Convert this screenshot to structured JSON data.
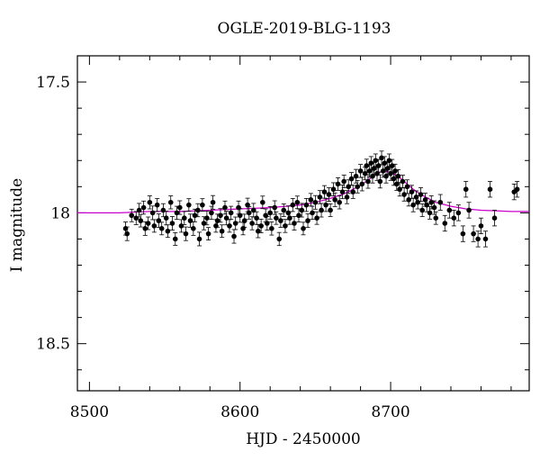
{
  "chart_data": {
    "type": "scatter",
    "title": "OGLE-2019-BLG-1193",
    "xlabel": "HJD - 2450000",
    "ylabel": "I magnitude",
    "xlim": [
      8492,
      8792
    ],
    "ylim": [
      18.68,
      17.4
    ],
    "y_inverted": true,
    "x_ticks": [
      8500,
      8600,
      8700
    ],
    "x_tick_labels": [
      "8500",
      "8600",
      "8700"
    ],
    "y_ticks": [
      17.5,
      18,
      18.5
    ],
    "y_tick_labels": [
      "17.5",
      "18",
      "18.5"
    ],
    "grid": false,
    "colors": {
      "points": "#000000",
      "model": "#cc00cc"
    },
    "series": [
      {
        "type": "scatter_errorbar",
        "x": [
          8524,
          8525,
          8528,
          8531,
          8533,
          8534,
          8536,
          8537,
          8539,
          8540,
          8542,
          8543,
          8545,
          8546,
          8548,
          8549,
          8551,
          8552,
          8554,
          8555,
          8557,
          8558,
          8560,
          8561,
          8563,
          8564,
          8566,
          8567,
          8569,
          8570,
          8572,
          8573,
          8575,
          8576,
          8578,
          8579,
          8581,
          8582,
          8584,
          8585,
          8587,
          8588,
          8590,
          8591,
          8593,
          8594,
          8596,
          8597,
          8599,
          8600,
          8602,
          8603,
          8605,
          8606,
          8608,
          8609,
          8611,
          8612,
          8614,
          8615,
          8617,
          8618,
          8620,
          8621,
          8623,
          8624,
          8626,
          8627,
          8629,
          8630,
          8632,
          8633,
          8635,
          8636,
          8638,
          8639,
          8641,
          8642,
          8644,
          8645,
          8647,
          8648,
          8650,
          8651,
          8653,
          8654,
          8656,
          8657,
          8659,
          8660,
          8662,
          8663,
          8665,
          8666,
          8668,
          8669,
          8671,
          8672,
          8674,
          8675,
          8677,
          8678,
          8680,
          8681,
          8683,
          8684,
          8685,
          8686,
          8687,
          8688,
          8689,
          8690,
          8691,
          8692,
          8693,
          8694,
          8695,
          8696,
          8697,
          8698,
          8699,
          8700,
          8701,
          8702,
          8703,
          8704,
          8705,
          8706,
          8708,
          8709,
          8711,
          8712,
          8714,
          8715,
          8717,
          8718,
          8720,
          8721,
          8723,
          8724,
          8726,
          8727,
          8729,
          8730,
          8733,
          8736,
          8739,
          8742,
          8745,
          8748,
          8750,
          8752,
          8755,
          8758,
          8760,
          8763,
          8766,
          8769,
          8782,
          8784
        ],
        "y": [
          18.06,
          18.08,
          18.01,
          18.02,
          17.99,
          18.03,
          17.98,
          18.06,
          18.04,
          17.96,
          18.0,
          18.05,
          17.97,
          18.03,
          18.06,
          17.99,
          18.02,
          18.07,
          17.96,
          18.04,
          18.1,
          18.0,
          17.98,
          18.05,
          18.02,
          18.08,
          17.97,
          18.03,
          18.06,
          18.01,
          17.99,
          18.1,
          17.97,
          18.04,
          18.02,
          18.08,
          18.0,
          17.96,
          18.05,
          18.03,
          18.01,
          18.07,
          17.98,
          18.02,
          18.05,
          18.0,
          18.09,
          18.04,
          17.98,
          18.01,
          18.06,
          18.03,
          17.97,
          18.0,
          18.04,
          17.99,
          18.02,
          18.07,
          18.05,
          17.96,
          18.01,
          18.04,
          18.0,
          18.06,
          17.98,
          18.02,
          18.1,
          18.03,
          17.99,
          18.05,
          18.0,
          18.02,
          17.97,
          18.04,
          17.96,
          18.01,
          17.99,
          18.06,
          17.97,
          18.03,
          17.95,
          18.0,
          17.96,
          18.02,
          17.94,
          17.99,
          17.92,
          17.97,
          17.93,
          17.99,
          17.91,
          17.95,
          17.89,
          17.96,
          17.92,
          17.88,
          17.94,
          17.9,
          17.87,
          17.92,
          17.86,
          17.9,
          17.84,
          17.89,
          17.85,
          17.82,
          17.88,
          17.84,
          17.81,
          17.86,
          17.83,
          17.8,
          17.85,
          17.82,
          17.88,
          17.79,
          17.84,
          17.81,
          17.86,
          17.83,
          17.8,
          17.85,
          17.82,
          17.87,
          17.84,
          17.89,
          17.86,
          17.91,
          17.88,
          17.93,
          17.9,
          17.95,
          17.92,
          17.97,
          17.94,
          17.96,
          17.93,
          17.99,
          17.95,
          17.97,
          18.0,
          17.96,
          17.98,
          18.02,
          17.96,
          18.04,
          17.99,
          18.02,
          18.0,
          18.08,
          17.91,
          17.99,
          18.08,
          18.1,
          18.05,
          18.1,
          17.91,
          18.02,
          17.92,
          17.91
        ],
        "yerr": [
          0.025,
          0.026,
          0.024,
          0.025,
          0.026,
          0.024,
          0.025,
          0.026,
          0.024,
          0.025,
          0.026,
          0.024,
          0.025,
          0.026,
          0.024,
          0.025,
          0.026,
          0.024,
          0.025,
          0.026,
          0.024,
          0.025,
          0.026,
          0.024,
          0.025,
          0.026,
          0.024,
          0.025,
          0.026,
          0.024,
          0.025,
          0.026,
          0.024,
          0.025,
          0.026,
          0.024,
          0.025,
          0.026,
          0.024,
          0.025,
          0.026,
          0.024,
          0.025,
          0.026,
          0.024,
          0.025,
          0.026,
          0.024,
          0.025,
          0.026,
          0.024,
          0.025,
          0.026,
          0.024,
          0.025,
          0.026,
          0.024,
          0.025,
          0.026,
          0.024,
          0.025,
          0.026,
          0.024,
          0.025,
          0.026,
          0.024,
          0.025,
          0.026,
          0.024,
          0.025,
          0.026,
          0.024,
          0.025,
          0.026,
          0.024,
          0.025,
          0.026,
          0.024,
          0.025,
          0.026,
          0.024,
          0.025,
          0.026,
          0.024,
          0.025,
          0.026,
          0.024,
          0.025,
          0.026,
          0.024,
          0.025,
          0.026,
          0.024,
          0.025,
          0.026,
          0.024,
          0.025,
          0.026,
          0.024,
          0.025,
          0.026,
          0.024,
          0.025,
          0.026,
          0.024,
          0.025,
          0.026,
          0.024,
          0.025,
          0.026,
          0.024,
          0.025,
          0.026,
          0.024,
          0.025,
          0.026,
          0.024,
          0.025,
          0.026,
          0.024,
          0.025,
          0.026,
          0.024,
          0.025,
          0.026,
          0.024,
          0.025,
          0.026,
          0.024,
          0.025,
          0.026,
          0.024,
          0.025,
          0.026,
          0.024,
          0.025,
          0.026,
          0.024,
          0.025,
          0.026,
          0.024,
          0.025,
          0.026,
          0.024,
          0.03,
          0.03,
          0.03,
          0.03,
          0.03,
          0.03,
          0.03,
          0.03,
          0.03,
          0.03,
          0.03,
          0.03,
          0.03,
          0.03,
          0.03,
          0.03
        ]
      },
      {
        "type": "line",
        "x": [
          8492,
          8520,
          8540,
          8560,
          8580,
          8600,
          8620,
          8640,
          8650,
          8660,
          8670,
          8680,
          8685,
          8690,
          8693,
          8696,
          8700,
          8705,
          8710,
          8715,
          8720,
          8725,
          8730,
          8740,
          8750,
          8760,
          8770,
          8780,
          8792
        ],
        "y": [
          18.0,
          18.0,
          17.995,
          17.995,
          17.99,
          17.985,
          17.98,
          17.97,
          17.96,
          17.945,
          17.925,
          17.895,
          17.875,
          17.855,
          17.845,
          17.84,
          17.845,
          17.86,
          17.885,
          17.91,
          17.93,
          17.945,
          17.96,
          17.975,
          17.985,
          17.99,
          17.992,
          17.995,
          17.995
        ]
      }
    ]
  }
}
